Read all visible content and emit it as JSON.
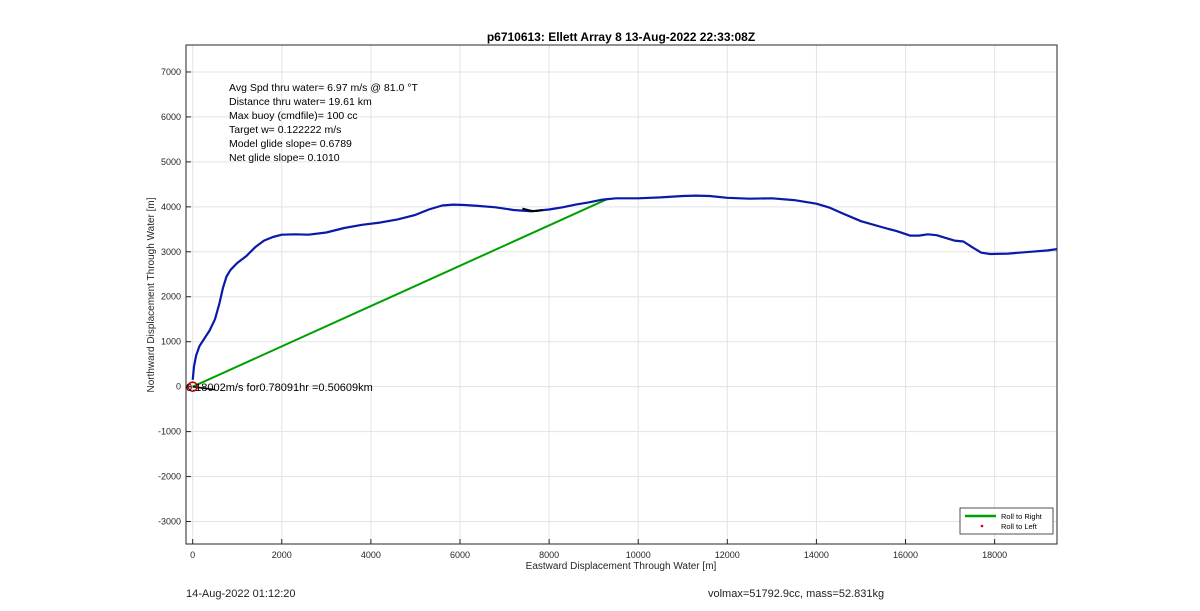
{
  "chart_data": {
    "type": "line",
    "title": "p6710613: Ellett Array 8 13-Aug-2022 22:33:08Z",
    "xlabel": "Eastward Displacement Through Water [m]",
    "ylabel": "Northward Displacement Through Water [m]",
    "xlim": [
      -150,
      19400
    ],
    "ylim": [
      -3500,
      7600
    ],
    "xticks": [
      0,
      2000,
      4000,
      6000,
      8000,
      10000,
      12000,
      14000,
      16000,
      18000
    ],
    "yticks": [
      -3000,
      -2000,
      -1000,
      0,
      1000,
      2000,
      3000,
      4000,
      5000,
      6000,
      7000
    ],
    "grid": true,
    "legend_position": "bottom-right",
    "stats_lines": [
      "Avg Spd thru water=  6.97 m/s @  81.0 °T",
      "Distance thru water= 19.61 km",
      "Max buoy (cmdfile)= 100 cc",
      "Target w= 0.122222 m/s",
      "Model glide slope= 0.6789",
      "Net glide slope= 0.1010"
    ],
    "current_annotation": "0.18002m/s for0.78091hr =0.50609km",
    "series": [
      {
        "name": "Roll to Right",
        "color": "#00a000",
        "kind": "line",
        "x": [
          0,
          9300
        ],
        "y": [
          0,
          4170
        ]
      },
      {
        "name": "Roll to Left",
        "color": "#c00000",
        "kind": "marker",
        "x": [],
        "y": []
      }
    ],
    "track": {
      "color": "#0a1aa8",
      "x": [
        0,
        30,
        80,
        150,
        260,
        380,
        500,
        600,
        680,
        760,
        850,
        1000,
        1200,
        1400,
        1600,
        1800,
        2000,
        2300,
        2600,
        3000,
        3400,
        3800,
        4200,
        4600,
        5000,
        5300,
        5600,
        5850,
        6100,
        6400,
        6800,
        7200,
        7600,
        7800,
        8000,
        8300,
        8600,
        8900,
        9200,
        9500,
        10000,
        10500,
        11000,
        11300,
        11600,
        12000,
        12500,
        13000,
        13500,
        14000,
        14300,
        14600,
        15000,
        15500,
        15800,
        16100,
        16300,
        16500,
        16700,
        16900,
        17100,
        17300,
        17500,
        17700,
        17900,
        18300,
        18800,
        19200,
        19400
      ],
      "y": [
        150,
        450,
        700,
        900,
        1070,
        1250,
        1500,
        1850,
        2200,
        2450,
        2600,
        2750,
        2900,
        3100,
        3250,
        3330,
        3380,
        3390,
        3380,
        3430,
        3530,
        3600,
        3650,
        3720,
        3820,
        3940,
        4030,
        4050,
        4040,
        4020,
        3990,
        3930,
        3900,
        3920,
        3940,
        3990,
        4050,
        4100,
        4160,
        4190,
        4190,
        4210,
        4240,
        4250,
        4240,
        4200,
        4180,
        4190,
        4150,
        4070,
        3980,
        3850,
        3680,
        3540,
        3460,
        3360,
        3360,
        3390,
        3370,
        3310,
        3250,
        3230,
        3100,
        2980,
        2950,
        2960,
        3000,
        3030,
        3060
      ]
    },
    "kink": {
      "color": "#000000",
      "x": [
        7400,
        7550,
        7650,
        7750,
        7850
      ],
      "y": [
        3960,
        3920,
        3905,
        3915,
        3930
      ]
    },
    "current_vector": {
      "color": "#000000",
      "x": [
        0,
        506
      ],
      "y": [
        0,
        -70
      ]
    },
    "start_marker": {
      "x": 0,
      "y": 0,
      "color": "#cc0000"
    }
  },
  "footer": {
    "left": "14-Aug-2022 01:12:20",
    "right": "volmax=51792.9cc, mass=52.831kg"
  }
}
